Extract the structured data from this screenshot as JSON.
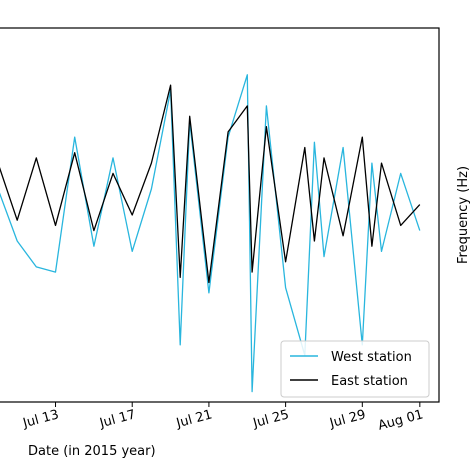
{
  "chart_data": {
    "type": "line",
    "xlabel": "Date (in 2015 year)",
    "right_ylabel": "Frequency (Hz)",
    "x_ticks": [
      "Jul 13",
      "Jul 17",
      "Jul 21",
      "Jul 25",
      "Jul 29",
      "Aug 01"
    ],
    "x_tick_dates": [
      "2015-07-13",
      "2015-07-17",
      "2015-07-21",
      "2015-07-25",
      "2015-07-29",
      "2015-08-01"
    ],
    "xlim": [
      "2015-07-10",
      "2015-08-02"
    ],
    "ylim": [
      -2.0,
      1.6
    ],
    "grid": false,
    "legend_position": "lower-right",
    "series": [
      {
        "name": "West station",
        "color": "#29b6de",
        "points": [
          [
            "2015-07-10",
            0.05
          ],
          [
            "2015-07-11",
            -0.45
          ],
          [
            "2015-07-12",
            -0.7
          ],
          [
            "2015-07-13",
            -0.75
          ],
          [
            "2015-07-14",
            0.55
          ],
          [
            "2015-07-15",
            -0.5
          ],
          [
            "2015-07-16",
            0.35
          ],
          [
            "2015-07-17",
            -0.55
          ],
          [
            "2015-07-18",
            0.05
          ],
          [
            "2015-07-19",
            1.0
          ],
          [
            "2015-07-19T12:00",
            -1.45
          ],
          [
            "2015-07-20",
            0.7
          ],
          [
            "2015-07-21",
            -0.95
          ],
          [
            "2015-07-22",
            0.55
          ],
          [
            "2015-07-23",
            1.15
          ],
          [
            "2015-07-23T06:00",
            -1.9
          ],
          [
            "2015-07-24",
            0.85
          ],
          [
            "2015-07-25",
            -0.9
          ],
          [
            "2015-07-26",
            -1.55
          ],
          [
            "2015-07-26T12:00",
            0.5
          ],
          [
            "2015-07-27",
            -0.6
          ],
          [
            "2015-07-28",
            0.45
          ],
          [
            "2015-07-29",
            -1.45
          ],
          [
            "2015-07-29T12:00",
            0.3
          ],
          [
            "2015-07-30",
            -0.55
          ],
          [
            "2015-07-31",
            0.2
          ],
          [
            "2015-08-01",
            -0.35
          ]
        ]
      },
      {
        "name": "East station",
        "color": "#000000",
        "points": [
          [
            "2015-07-10",
            0.3
          ],
          [
            "2015-07-11",
            -0.25
          ],
          [
            "2015-07-12",
            0.35
          ],
          [
            "2015-07-13",
            -0.3
          ],
          [
            "2015-07-14",
            0.4
          ],
          [
            "2015-07-15",
            -0.35
          ],
          [
            "2015-07-16",
            0.2
          ],
          [
            "2015-07-17",
            -0.2
          ],
          [
            "2015-07-18",
            0.3
          ],
          [
            "2015-07-19",
            1.05
          ],
          [
            "2015-07-19T12:00",
            -0.8
          ],
          [
            "2015-07-20",
            0.75
          ],
          [
            "2015-07-21",
            -0.85
          ],
          [
            "2015-07-22",
            0.6
          ],
          [
            "2015-07-23",
            0.85
          ],
          [
            "2015-07-23T06:00",
            -0.75
          ],
          [
            "2015-07-24",
            0.65
          ],
          [
            "2015-07-25",
            -0.65
          ],
          [
            "2015-07-26",
            0.45
          ],
          [
            "2015-07-26T12:00",
            -0.45
          ],
          [
            "2015-07-27",
            0.35
          ],
          [
            "2015-07-28",
            -0.4
          ],
          [
            "2015-07-29",
            0.55
          ],
          [
            "2015-07-29T12:00",
            -0.5
          ],
          [
            "2015-07-30",
            0.3
          ],
          [
            "2015-07-31",
            -0.3
          ],
          [
            "2015-08-01",
            -0.1
          ]
        ]
      }
    ]
  }
}
